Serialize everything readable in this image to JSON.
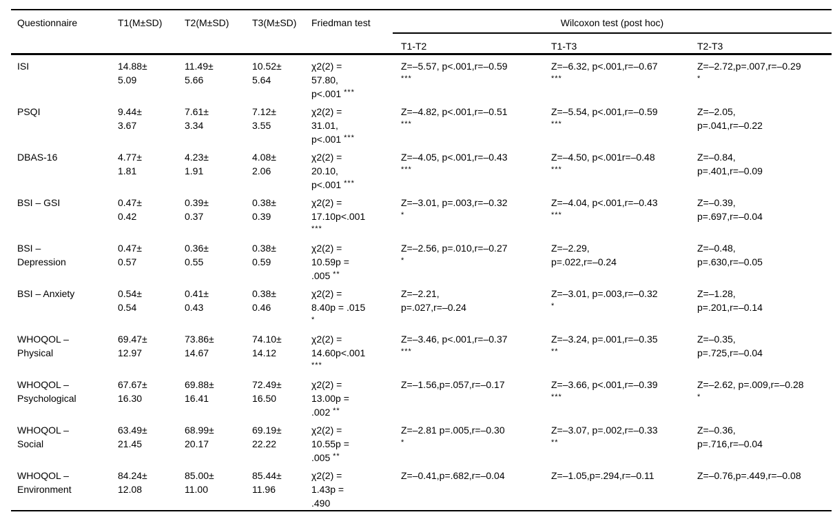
{
  "table": {
    "headers": {
      "questionnaire": "Questionnaire",
      "t1": "T1(M±SD)",
      "t2": "T2(M±SD)",
      "t3": "T3(M±SD)",
      "friedman": "Friedman test",
      "wilcoxon_group": "Wilcoxon test (post hoc)",
      "sub": [
        "T1-T2",
        "T1-T3",
        "T2-T3"
      ]
    },
    "rows": [
      {
        "questionnaire": [
          "ISI"
        ],
        "t1": [
          "14.88±",
          "5.09"
        ],
        "t2": [
          "11.49±",
          "5.66"
        ],
        "t3": [
          "10.52±",
          "5.64"
        ],
        "friedman": [
          "χ2(2) =",
          "57.80,",
          "p<.001 ***"
        ],
        "t1_t2": [
          "Z=–5.57, p<.001,r=–0.59",
          "***"
        ],
        "t1_t3": [
          "Z=–6.32, p<.001,r=–0.67",
          "***"
        ],
        "t2_t3": [
          "Z=–2.72,p=.007,r=–0.29",
          "*"
        ]
      },
      {
        "questionnaire": [
          "PSQI"
        ],
        "t1": [
          "9.44±",
          "3.67"
        ],
        "t2": [
          "7.61±",
          "3.34"
        ],
        "t3": [
          "7.12±",
          "3.55"
        ],
        "friedman": [
          "χ2(2) =",
          "31.01,",
          "p<.001 ***"
        ],
        "t1_t2": [
          "Z=–4.82, p<.001,r=–0.51",
          "***"
        ],
        "t1_t3": [
          "Z=–5.54, p<.001,r=–0.59",
          "***"
        ],
        "t2_t3": [
          "Z=–2.05,",
          "p=.041,r=–0.22"
        ]
      },
      {
        "questionnaire": [
          "DBAS-16"
        ],
        "t1": [
          "4.77±",
          "1.81"
        ],
        "t2": [
          "4.23±",
          "1.91"
        ],
        "t3": [
          "4.08±",
          "2.06"
        ],
        "friedman": [
          "χ2(2) =",
          "20.10,",
          "p<.001 ***"
        ],
        "t1_t2": [
          "Z=–4.05, p<.001,r=–0.43",
          "***"
        ],
        "t1_t3": [
          "Z=–4.50, p<.001r=–0.48",
          "***"
        ],
        "t2_t3": [
          "Z=–0.84,",
          "p=.401,r=–0.09"
        ]
      },
      {
        "questionnaire": [
          "BSI – GSI"
        ],
        "t1": [
          "0.47±",
          "0.42"
        ],
        "t2": [
          "0.39±",
          "0.37"
        ],
        "t3": [
          "0.38±",
          "0.39"
        ],
        "friedman": [
          "χ2(2) =",
          "17.10p<.001",
          "***"
        ],
        "t1_t2": [
          "Z=–3.01, p=.003,r=–0.32",
          "*"
        ],
        "t1_t3": [
          "Z=–4.04, p<.001,r=–0.43",
          "***"
        ],
        "t2_t3": [
          "Z=–0.39,",
          "p=.697,r=–0.04"
        ]
      },
      {
        "questionnaire": [
          "BSI –",
          "Depression"
        ],
        "t1": [
          "0.47±",
          "0.57"
        ],
        "t2": [
          "0.36±",
          "0.55"
        ],
        "t3": [
          "0.38±",
          "0.59"
        ],
        "friedman": [
          "χ2(2) =",
          "10.59p =",
          ".005 **"
        ],
        "t1_t2": [
          "Z=–2.56, p=.010,r=–0.27",
          "*"
        ],
        "t1_t3": [
          "Z=–2.29,",
          "p=.022,r=–0.24"
        ],
        "t2_t3": [
          "Z=–0.48,",
          "p=.630,r=–0.05"
        ]
      },
      {
        "questionnaire": [
          "BSI – Anxiety"
        ],
        "t1": [
          "0.54±",
          "0.54"
        ],
        "t2": [
          "0.41±",
          "0.43"
        ],
        "t3": [
          "0.38±",
          "0.46"
        ],
        "friedman": [
          "χ2(2) =",
          "8.40p = .015",
          "*"
        ],
        "t1_t2": [
          "Z=–2.21,",
          "p=.027,r=–0.24"
        ],
        "t1_t3": [
          "Z=–3.01, p=.003,r=–0.32",
          "*"
        ],
        "t2_t3": [
          "Z=–1.28,",
          "p=.201,r=–0.14"
        ]
      },
      {
        "questionnaire": [
          "WHOQOL –",
          "Physical"
        ],
        "t1": [
          "69.47±",
          "12.97"
        ],
        "t2": [
          "73.86±",
          "14.67"
        ],
        "t3": [
          "74.10±",
          "14.12"
        ],
        "friedman": [
          "χ2(2) =",
          "14.60p<.001",
          "***"
        ],
        "t1_t2": [
          "Z=–3.46, p<.001,r=–0.37",
          "***"
        ],
        "t1_t3": [
          "Z=–3.24, p=.001,r=–0.35",
          "**"
        ],
        "t2_t3": [
          "Z=–0.35,",
          "p=.725,r=–0.04"
        ]
      },
      {
        "questionnaire": [
          "WHOQOL –",
          "Psychological"
        ],
        "t1": [
          "67.67±",
          "16.30"
        ],
        "t2": [
          "69.88±",
          "16.41"
        ],
        "t3": [
          "72.49±",
          "16.50"
        ],
        "friedman": [
          "χ2(2) =",
          "13.00p =",
          ".002 **"
        ],
        "t1_t2": [
          "Z=–1.56,p=.057,r=–0.17"
        ],
        "t1_t3": [
          "Z=–3.66, p<.001,r=–0.39",
          "***"
        ],
        "t2_t3": [
          "Z=–2.62, p=.009,r=–0.28",
          "*"
        ]
      },
      {
        "questionnaire": [
          "WHOQOL –",
          "Social"
        ],
        "t1": [
          "63.49±",
          "21.45"
        ],
        "t2": [
          "68.99±",
          "20.17"
        ],
        "t3": [
          "69.19±",
          "22.22"
        ],
        "friedman": [
          "χ2(2) =",
          "10.55p =",
          ".005 **"
        ],
        "t1_t2": [
          "Z=–2.81 p=.005,r=–0.30",
          "*"
        ],
        "t1_t3": [
          "Z=–3.07, p=.002,r=–0.33",
          "**"
        ],
        "t2_t3": [
          "Z=–0.36,",
          "p=.716,r=–0.04"
        ]
      },
      {
        "questionnaire": [
          "WHOQOL –",
          "Environment"
        ],
        "t1": [
          "84.24±",
          "12.08"
        ],
        "t2": [
          "85.00±",
          "11.00"
        ],
        "t3": [
          "85.44±",
          "11.96"
        ],
        "friedman": [
          "χ2(2) =",
          "1.43p =",
          ".490"
        ],
        "t1_t2": [
          "Z=–0.41,p=.682,r=–0.04"
        ],
        "t1_t3": [
          "Z=–1.05,p=.294,r=–0.11"
        ],
        "t2_t3": [
          "Z=–0.76,p=.449,r=–0.08"
        ]
      }
    ]
  }
}
